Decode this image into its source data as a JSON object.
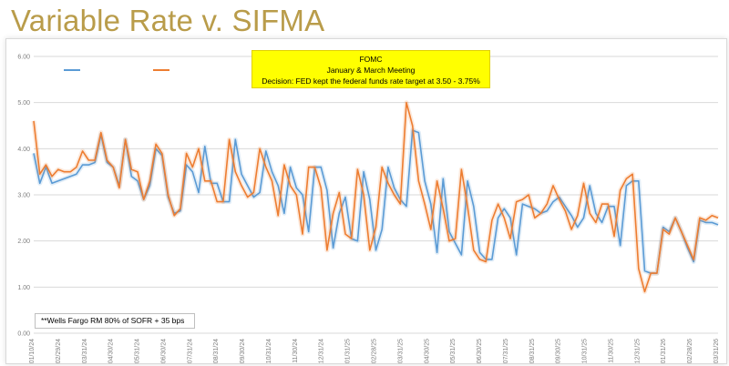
{
  "slide": {
    "title": "Variable Rate v. SIFMA"
  },
  "annotation": {
    "line1": "FOMC",
    "line2": "January & March Meeting",
    "line3": "Decision: FED kept the federal funds rate target at 3.50 - 3.75%"
  },
  "footnote": "**Wells Fargo RM 80% of SOFR + 35 bps",
  "colors": {
    "series_a": "#5b9bd5",
    "series_b": "#ed7d31",
    "grid": "#d9d9d9",
    "axis_text": "#7f7f7f"
  },
  "chart_data": {
    "type": "line",
    "ylim": [
      0,
      6
    ],
    "yticks": [
      "0.00",
      "1.00",
      "2.00",
      "3.00",
      "4.00",
      "5.00",
      "6.00"
    ],
    "date_ticks": [
      "01/10/24",
      "02/29/24",
      "03/31/24",
      "04/30/24",
      "05/31/24",
      "06/30/24",
      "07/31/24",
      "08/31/24",
      "09/30/24",
      "10/31/24",
      "11/30/24",
      "12/31/24",
      "01/31/25",
      "02/28/25",
      "03/31/25",
      "04/30/25",
      "05/31/25",
      "06/30/25",
      "07/31/25",
      "08/31/25",
      "09/30/25",
      "10/31/25",
      "11/30/25",
      "12/31/25",
      "01/31/26",
      "02/28/26",
      "03/31/26"
    ],
    "series": [
      {
        "name": "",
        "color": "#5b9bd5",
        "values": [
          3.9,
          3.25,
          3.6,
          3.25,
          3.3,
          3.35,
          3.4,
          3.45,
          3.65,
          3.65,
          3.7,
          4.3,
          3.7,
          3.6,
          3.2,
          4.2,
          3.4,
          3.3,
          2.9,
          3.2,
          4.0,
          3.85,
          2.95,
          2.6,
          2.65,
          3.65,
          3.5,
          3.05,
          4.05,
          3.25,
          3.25,
          2.85,
          2.85,
          4.2,
          3.45,
          3.2,
          2.95,
          3.05,
          3.95,
          3.5,
          3.2,
          2.6,
          3.6,
          3.15,
          3.0,
          2.2,
          3.6,
          3.6,
          3.1,
          1.85,
          2.6,
          2.95,
          2.05,
          2.0,
          3.5,
          2.9,
          1.8,
          2.25,
          3.6,
          3.15,
          2.9,
          2.75,
          4.4,
          4.35,
          3.3,
          2.8,
          1.75,
          3.35,
          2.2,
          1.95,
          1.7,
          3.3,
          2.75,
          1.75,
          1.6,
          1.6,
          2.5,
          2.7,
          2.5,
          1.7,
          2.8,
          2.75,
          2.7,
          2.6,
          2.65,
          2.85,
          2.95,
          2.75,
          2.55,
          2.3,
          2.5,
          3.2,
          2.6,
          2.4,
          2.75,
          2.75,
          1.9,
          3.2,
          3.3,
          3.3,
          1.35,
          1.3,
          1.3,
          2.3,
          2.2,
          2.5,
          2.2,
          1.85,
          1.55,
          2.45,
          2.4,
          2.4,
          2.35
        ]
      },
      {
        "name": "",
        "color": "#ed7d31",
        "values": [
          4.6,
          3.45,
          3.65,
          3.4,
          3.55,
          3.5,
          3.5,
          3.6,
          3.95,
          3.75,
          3.75,
          4.35,
          3.75,
          3.6,
          3.15,
          4.2,
          3.55,
          3.5,
          2.9,
          3.3,
          4.1,
          3.9,
          3.0,
          2.55,
          2.7,
          3.9,
          3.6,
          4.0,
          3.3,
          3.3,
          2.85,
          2.85,
          4.2,
          3.5,
          3.2,
          2.95,
          3.05,
          4.0,
          3.6,
          3.3,
          2.55,
          3.65,
          3.2,
          3.0,
          2.15,
          3.6,
          3.6,
          3.15,
          1.8,
          2.6,
          3.05,
          2.15,
          2.05,
          3.55,
          3.0,
          1.8,
          2.3,
          3.6,
          3.25,
          3.0,
          2.8,
          5.0,
          4.5,
          3.3,
          2.8,
          2.25,
          3.3,
          2.7,
          2.0,
          2.05,
          3.55,
          2.75,
          1.8,
          1.6,
          1.55,
          2.45,
          2.8,
          2.5,
          2.05,
          2.85,
          2.9,
          3.0,
          2.5,
          2.6,
          2.8,
          3.2,
          2.9,
          2.65,
          2.25,
          2.55,
          3.25,
          2.6,
          2.4,
          2.8,
          2.8,
          2.1,
          3.1,
          3.35,
          3.45,
          1.4,
          0.9,
          1.3,
          1.3,
          2.25,
          2.15,
          2.5,
          2.2,
          1.9,
          1.6,
          2.5,
          2.45,
          2.55,
          2.5
        ]
      }
    ]
  }
}
